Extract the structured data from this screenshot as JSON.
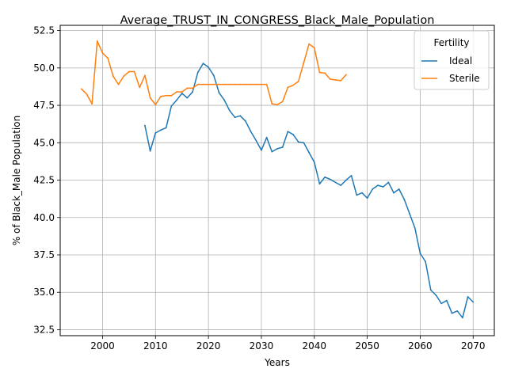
{
  "chart_data": {
    "type": "line",
    "title": "Average_TRUST_IN_CONGRESS_Black_Male_Population",
    "xlabel": "Years",
    "ylabel": "% of Black_Male Population",
    "xlim": [
      1992,
      2074
    ],
    "ylim": [
      32.1,
      52.85
    ],
    "xticks": [
      2000,
      2010,
      2020,
      2030,
      2040,
      2050,
      2060,
      2070
    ],
    "yticks": [
      32.5,
      35.0,
      37.5,
      40.0,
      42.5,
      45.0,
      47.5,
      50.0,
      52.5
    ],
    "ytick_labels": [
      "32.5",
      "35.0",
      "37.5",
      "40.0",
      "42.5",
      "45.0",
      "47.5",
      "50.0",
      "52.5"
    ],
    "grid": true,
    "legend": {
      "title": "Fertility",
      "location": "top-right"
    },
    "series": [
      {
        "name": "Ideal",
        "color": "#1f77b4",
        "x": [
          2008,
          2009,
          2010,
          2011,
          2012,
          2013,
          2014,
          2015,
          2016,
          2017,
          2018,
          2019,
          2020,
          2021,
          2022,
          2023,
          2024,
          2025,
          2026,
          2027,
          2028,
          2029,
          2030,
          2031,
          2032,
          2033,
          2034,
          2035,
          2036,
          2037,
          2038,
          2039,
          2040,
          2041,
          2042,
          2043,
          2044,
          2045,
          2046,
          2047,
          2048,
          2049,
          2050,
          2051,
          2052,
          2053,
          2054,
          2055,
          2056,
          2057,
          2058,
          2059,
          2060,
          2061,
          2062,
          2063,
          2064,
          2065,
          2066,
          2067,
          2068,
          2069,
          2070
        ],
        "values": [
          46.15,
          44.45,
          45.65,
          45.85,
          46.0,
          47.45,
          47.85,
          48.3,
          48.0,
          48.4,
          49.7,
          50.3,
          50.05,
          49.5,
          48.35,
          47.85,
          47.15,
          46.7,
          46.8,
          46.45,
          45.75,
          45.15,
          44.5,
          45.35,
          44.4,
          44.6,
          44.7,
          45.75,
          45.55,
          45.05,
          45.0,
          44.35,
          43.7,
          42.25,
          42.7,
          42.55,
          42.35,
          42.15,
          42.5,
          42.8,
          41.5,
          41.65,
          41.3,
          41.9,
          42.15,
          42.05,
          42.35,
          41.65,
          41.9,
          41.2,
          40.25,
          39.3,
          37.6,
          37.05,
          35.15,
          34.8,
          34.25,
          34.45,
          33.6,
          33.75,
          33.3,
          34.7,
          34.35
        ]
      },
      {
        "name": "Sterile",
        "color": "#ff7f0e",
        "x": [
          1996,
          1997,
          1998,
          1999,
          2000,
          2001,
          2002,
          2003,
          2004,
          2005,
          2006,
          2007,
          2008,
          2009,
          2010,
          2011,
          2012,
          2013,
          2014,
          2015,
          2016,
          2017,
          2018,
          2019,
          2020,
          2021,
          2022,
          2023,
          2024,
          2025,
          2026,
          2027,
          2028,
          2029,
          2030,
          2031,
          2032,
          2033,
          2034,
          2035,
          2036,
          2037,
          2038,
          2039,
          2040,
          2041,
          2042,
          2043,
          2044,
          2045,
          2046
        ],
        "values": [
          48.6,
          48.25,
          47.6,
          51.8,
          51.0,
          50.65,
          49.45,
          48.9,
          49.45,
          49.75,
          49.75,
          48.7,
          49.5,
          48.0,
          47.55,
          48.1,
          48.15,
          48.15,
          48.4,
          48.4,
          48.65,
          48.65,
          48.9,
          48.9,
          48.9,
          48.9,
          48.9,
          48.9,
          48.9,
          48.9,
          48.9,
          48.9,
          48.9,
          48.9,
          48.9,
          48.9,
          47.6,
          47.55,
          47.75,
          48.7,
          48.85,
          49.1,
          50.35,
          51.6,
          51.35,
          49.7,
          49.65,
          49.25,
          49.2,
          49.15,
          49.55
        ]
      }
    ]
  }
}
